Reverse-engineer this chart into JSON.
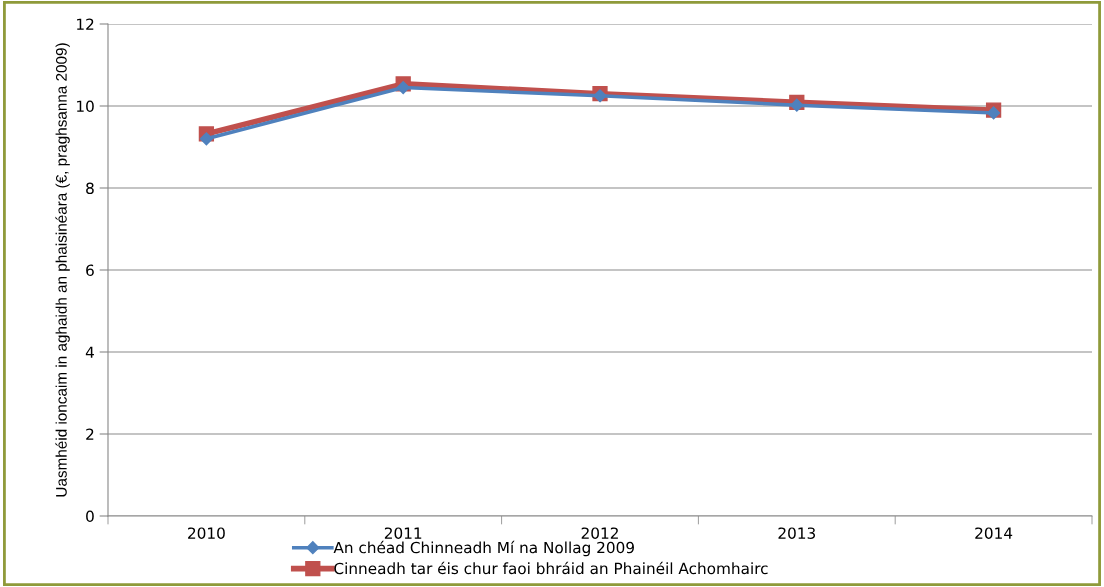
{
  "chart_data": {
    "type": "line",
    "ylabel": "Uasmhéid ioncaim in aghaidh an phaisinéara (€, praghsanna 2009)",
    "categories": [
      "2010",
      "2011",
      "2012",
      "2013",
      "2014"
    ],
    "series": [
      {
        "name": "An chéad Chinneadh Mí na Nollag 2009",
        "color": "#4f81bd",
        "marker": "diamond",
        "values": [
          9.2,
          10.45,
          10.25,
          10.02,
          9.83
        ]
      },
      {
        "name": "Cinneadh tar éis chur faoi bhráid an Phainéil Achomhairc",
        "color": "#c0504d",
        "marker": "square",
        "values": [
          9.32,
          10.54,
          10.3,
          10.09,
          9.9
        ]
      }
    ],
    "ylim": [
      0,
      12
    ],
    "yticks": [
      0,
      2,
      4,
      6,
      8,
      10,
      12
    ],
    "grid": "y",
    "legend": "bottom",
    "line_style": "solid"
  }
}
